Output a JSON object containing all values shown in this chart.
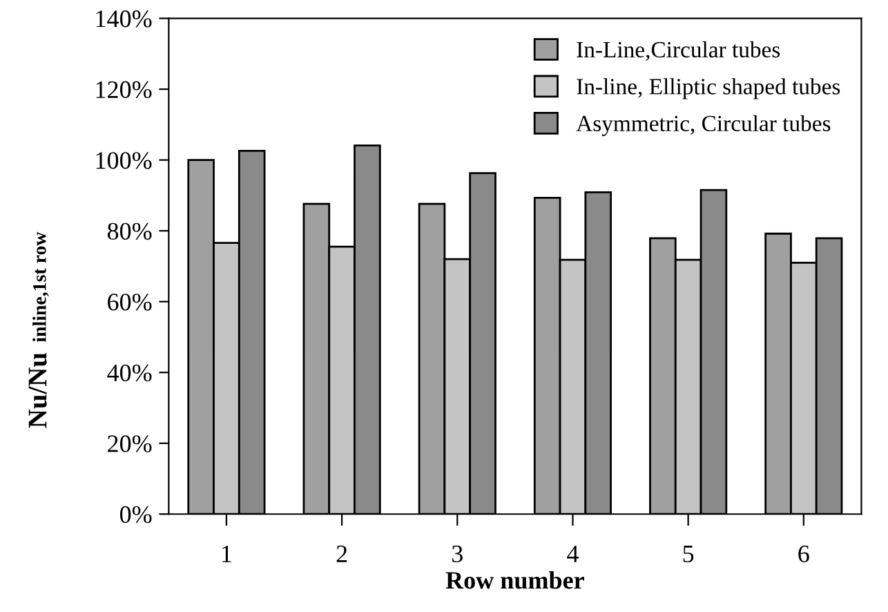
{
  "chart_data": {
    "type": "bar",
    "xlabel": "Row number",
    "ylabel": "Nu/Nu $_{inline,1st row}$",
    "categories": [
      "1",
      "2",
      "3",
      "4",
      "5",
      "6"
    ],
    "series": [
      {
        "name": "In-Line,Circular tubes",
        "color": "#a0a0a0",
        "values": [
          100,
          87.6,
          87.6,
          89.3,
          77.9,
          79.2
        ]
      },
      {
        "name": "In-line, Elliptic shaped tubes",
        "color": "#c4c4c4",
        "values": [
          76.6,
          75.5,
          72,
          71.8,
          71.8,
          71
        ]
      },
      {
        "name": "Asymmetric, Circular tubes",
        "color": "#8a8a8a",
        "values": [
          102.6,
          104.1,
          96.3,
          90.9,
          91.5,
          77.9
        ]
      }
    ],
    "ylim": [
      0,
      140
    ],
    "yticks": [
      {
        "value": 0,
        "label": "0%"
      },
      {
        "value": 20,
        "label": "20%"
      },
      {
        "value": 40,
        "label": "40%"
      },
      {
        "value": 60,
        "label": "60%"
      },
      {
        "value": 80,
        "label": "80%"
      },
      {
        "value": 100,
        "label": "100%"
      },
      {
        "value": 120,
        "label": "120%"
      },
      {
        "value": 140,
        "label": "140%"
      }
    ],
    "legend": "top right"
  }
}
